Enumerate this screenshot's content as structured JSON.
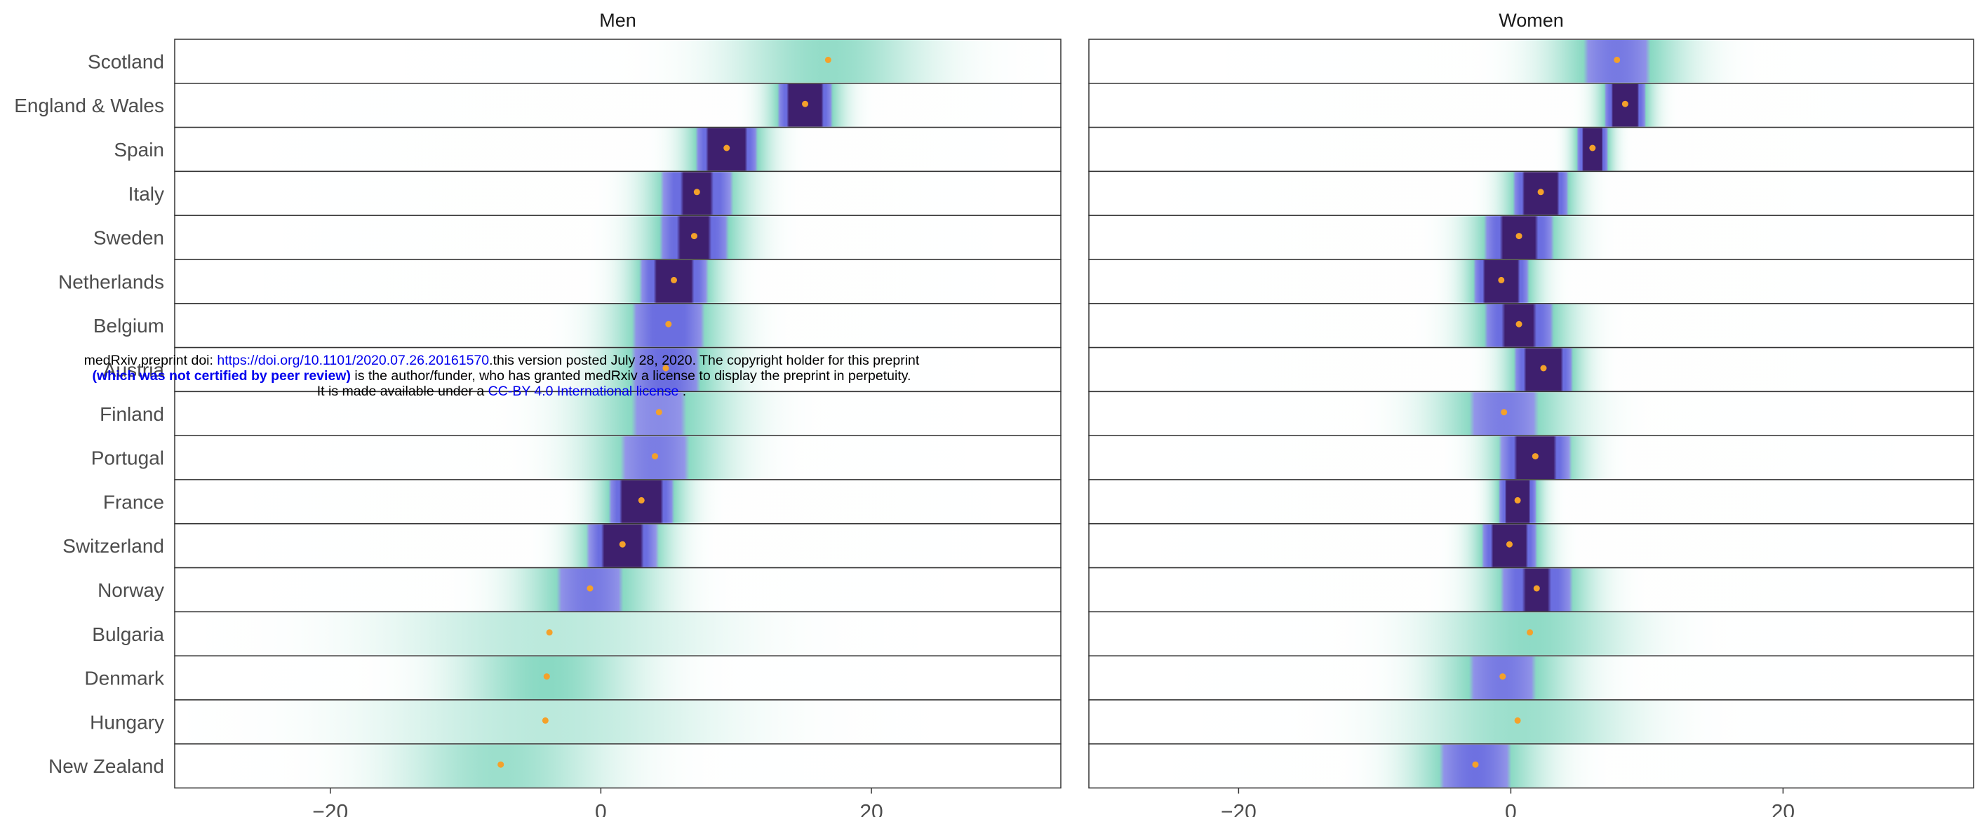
{
  "chart_data": [
    {
      "type": "heatmap",
      "title": "Men",
      "xlabel": "",
      "ylabel": "",
      "xlim": [
        -31.5,
        34
      ],
      "xticks": [
        -20,
        0,
        20
      ],
      "xtick_labels": [
        "−20",
        "0",
        "20"
      ],
      "grid": false,
      "legend": "none",
      "categories": [
        "Scotland",
        "England & Wales",
        "Spain",
        "Italy",
        "Sweden",
        "Netherlands",
        "Belgium",
        "Austria",
        "Finland",
        "Portugal",
        "France",
        "Switzerland",
        "Norway",
        "Bulgaria",
        "Denmark",
        "Hungary",
        "New Zealand"
      ],
      "point_estimates": [
        16.8,
        15.1,
        9.3,
        7.1,
        6.9,
        5.4,
        5.0,
        4.8,
        4.3,
        4.0,
        3.0,
        1.6,
        -0.8,
        -3.8,
        -4.0,
        -4.1,
        -7.4
      ],
      "distribution_spread": [
        4.8,
        1.6,
        1.8,
        2.3,
        2.4,
        2.0,
        2.8,
        3.0,
        3.8,
        3.4,
        1.9,
        2.1,
        3.3,
        7.8,
        4.4,
        8.2,
        5.2
      ]
    },
    {
      "type": "heatmap",
      "title": "Women",
      "xlabel": "",
      "ylabel": "",
      "xlim": [
        -31,
        34
      ],
      "xticks": [
        -20,
        0,
        20
      ],
      "xtick_labels": [
        "−20",
        "0",
        "20"
      ],
      "grid": false,
      "legend": "none",
      "categories": [
        "Scotland",
        "England & Wales",
        "Spain",
        "Italy",
        "Sweden",
        "Netherlands",
        "Belgium",
        "Austria",
        "Finland",
        "Portugal",
        "France",
        "Switzerland",
        "Norway",
        "Bulgaria",
        "Denmark",
        "Hungary",
        "New Zealand"
      ],
      "point_estimates": [
        7.8,
        8.4,
        6.0,
        2.2,
        0.6,
        -0.7,
        0.6,
        2.4,
        -0.5,
        1.8,
        0.5,
        -0.1,
        1.9,
        1.4,
        -0.6,
        0.5,
        -2.6
      ],
      "distribution_spread": [
        3.3,
        1.2,
        0.9,
        1.6,
        2.2,
        1.6,
        2.4,
        1.7,
        3.4,
        2.1,
        1.1,
        1.6,
        2.5,
        4.6,
        3.3,
        5.2,
        3.1
      ]
    }
  ],
  "colors": {
    "point": "#f4a12a",
    "low_density": "#55c8a8",
    "mid_density": "#6b6ee0",
    "high_density": "#3e1f6e",
    "panel_border": "#333333"
  },
  "watermark": {
    "line1_prefix": "medRxiv preprint doi: ",
    "line1_link": "https://doi.org/10.1101/2020.07.26.20161570",
    "line1_suffix": ".this version posted July 28, 2020. The copyright holder for this preprint",
    "line2_bold": "(which was not certified by peer review)",
    "line2_suffix": " is the author/funder, who has granted medRxiv a license to display the preprint in perpetuity.",
    "line3_prefix": "It is made available under a ",
    "line3_link": "CC-BY 4.0 International license",
    "line3_suffix": " ."
  }
}
